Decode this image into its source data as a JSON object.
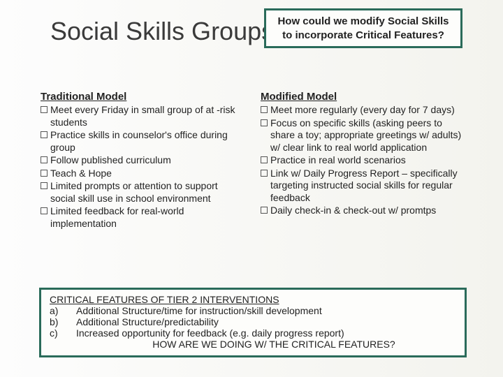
{
  "title": "Social Skills Groups",
  "callout": "How could we modify Social Skills to incorporate Critical Features?",
  "left": {
    "heading": "Traditional Model",
    "items": [
      "Meet every Friday in small group of at -risk students",
      "Practice skills in counselor's office during group",
      "Follow published curriculum",
      "Teach & Hope",
      "Limited prompts or attention to support social skill use in school environment",
      "Limited feedback for real-world implementation"
    ]
  },
  "right": {
    "heading": "Modified Model",
    "items": [
      "Meet more regularly (every day for 7 days)",
      "Focus on specific skills (asking peers to share a toy; appropriate greetings w/ adults) w/ clear link to real world application",
      "Practice in real world scenarios",
      "Link w/ Daily Progress Report – specifically targeting instructed social skills for regular feedback",
      "Daily check-in & check-out w/ promtps"
    ]
  },
  "footer": {
    "heading": "CRITICAL FEATURES OF TIER 2 INTERVENTIONS",
    "rows": [
      {
        "label": "a)",
        "text": "Additional Structure/time for instruction/skill development"
      },
      {
        "label": "b)",
        "text": "Additional Structure/predictability"
      },
      {
        "label": "c)",
        "text": "Increased opportunity for feedback (e.g. daily progress report)"
      }
    ],
    "question": "HOW ARE WE DOING W/ THE CRITICAL FEATURES?"
  },
  "colors": {
    "border": "#2a6b5a",
    "text": "#222222",
    "title": "#3a3a3a"
  }
}
